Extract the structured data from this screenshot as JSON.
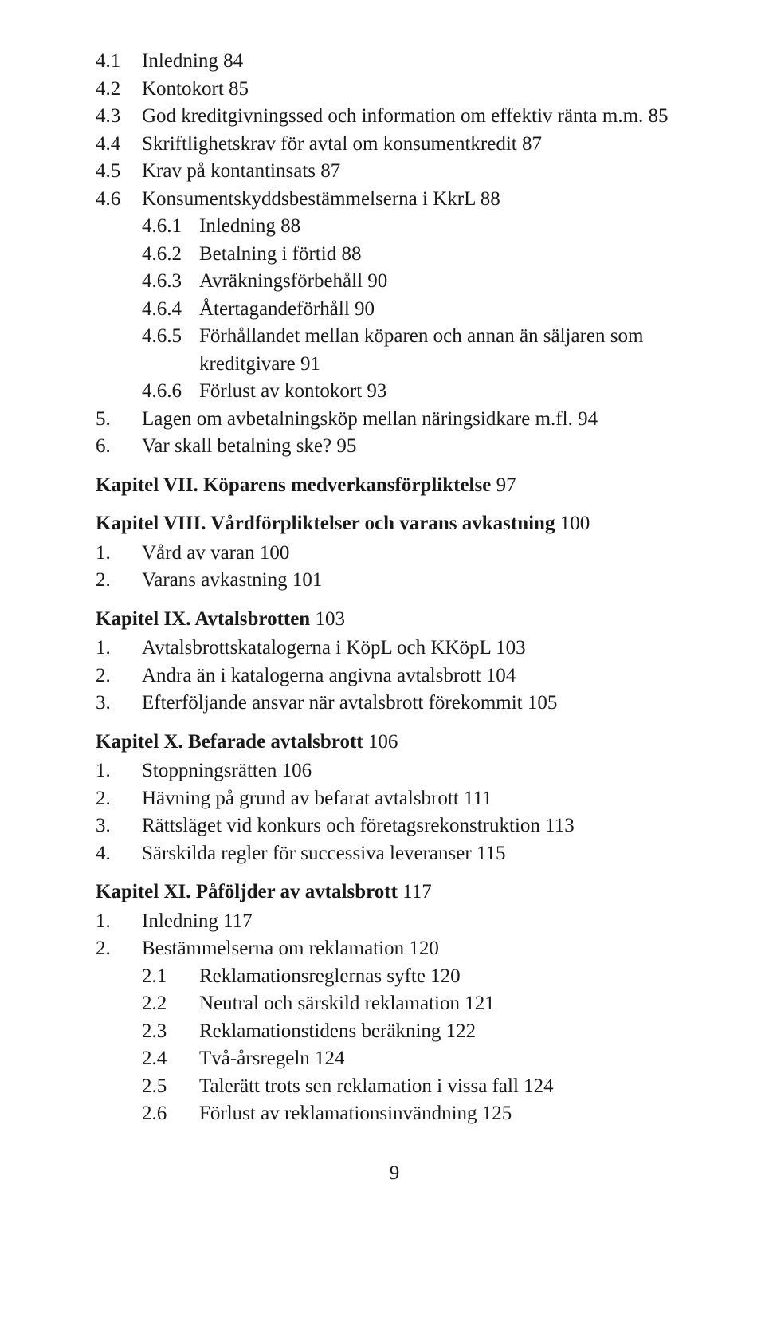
{
  "sec4": {
    "n1": "4.1",
    "t1": "Inledning   84",
    "n2": "4.2",
    "t2": "Kontokort   85",
    "n3": "4.3",
    "t3": "God kreditgivningssed och information om effektiv ränta m.m.   85",
    "n4": "4.4",
    "t4": "Skriftlighetskrav för avtal om konsumentkredit   87",
    "n5": "4.5",
    "t5": "Krav på kontantinsats   87",
    "n6": "4.6",
    "t6": "Konsumentskyddsbestämmelserna i KkrL   88",
    "n61": "4.6.1",
    "t61": "Inledning   88",
    "n62": "4.6.2",
    "t62": "Betalning i förtid   88",
    "n63": "4.6.3",
    "t63": "Avräkningsförbehåll   90",
    "n64": "4.6.4",
    "t64": "Återtagandeförhåll   90",
    "n65": "4.6.5",
    "t65": "Förhållandet mellan köparen och annan än säljaren som kreditgivare   91",
    "n66": "4.6.6",
    "t66": "Förlust av kontokort   93"
  },
  "sec5": {
    "n": "5.",
    "t": "Lagen om avbetalningsköp mellan näringsidkare m.fl.    94"
  },
  "sec6": {
    "n": "6.",
    "t": "Var skall betalning ske?    95"
  },
  "ch7": {
    "title": "Kapitel VII. Köparens medverkansförpliktelse",
    "page": "        97"
  },
  "ch8": {
    "title": "Kapitel VIII. Vårdförpliktelser och varans avkastning",
    "page": "   100",
    "n1": "1.",
    "t1": "Vård av varan   100",
    "n2": "2.",
    "t2": "Varans avkastning   101"
  },
  "ch9": {
    "title": "Kapitel IX. Avtalsbrotten",
    "page": "   103",
    "n1": "1.",
    "t1": "Avtalsbrottskatalogerna i KöpL och KKöpL   103",
    "n2": "2.",
    "t2": "Andra än i katalogerna angivna avtalsbrott   104",
    "n3": "3.",
    "t3": "Efterföljande ansvar när avtalsbrott förekommit   105"
  },
  "ch10": {
    "title": "Kapitel X. Befarade avtalsbrott",
    "page": "   106",
    "n1": "1.",
    "t1": "Stoppningsrätten   106",
    "n2": "2.",
    "t2": "Hävning på grund av befarat avtalsbrott   111",
    "n3": "3.",
    "t3": "Rättsläget vid konkurs och företagsrekonstruktion   113",
    "n4": "4.",
    "t4": "Särskilda regler för successiva leveranser   115"
  },
  "ch11": {
    "title": "Kapitel XI. Påföljder av avtalsbrott",
    "page": "   117",
    "n1": "1.",
    "t1": "Inledning   117",
    "n2": "2.",
    "t2": "Bestämmelserna om reklamation   120",
    "n21": "2.1",
    "t21": "Reklamationsreglernas syfte   120",
    "n22": "2.2",
    "t22": "Neutral och särskild reklamation   121",
    "n23": "2.3",
    "t23": "Reklamationstidens beräkning   122",
    "n24": "2.4",
    "t24": "Två-årsregeln   124",
    "n25": "2.5",
    "t25": "Talerätt trots sen reklamation i vissa fall   124",
    "n26": "2.6",
    "t26": "Förlust av reklamationsinvändning   125"
  },
  "pagenum": "9"
}
